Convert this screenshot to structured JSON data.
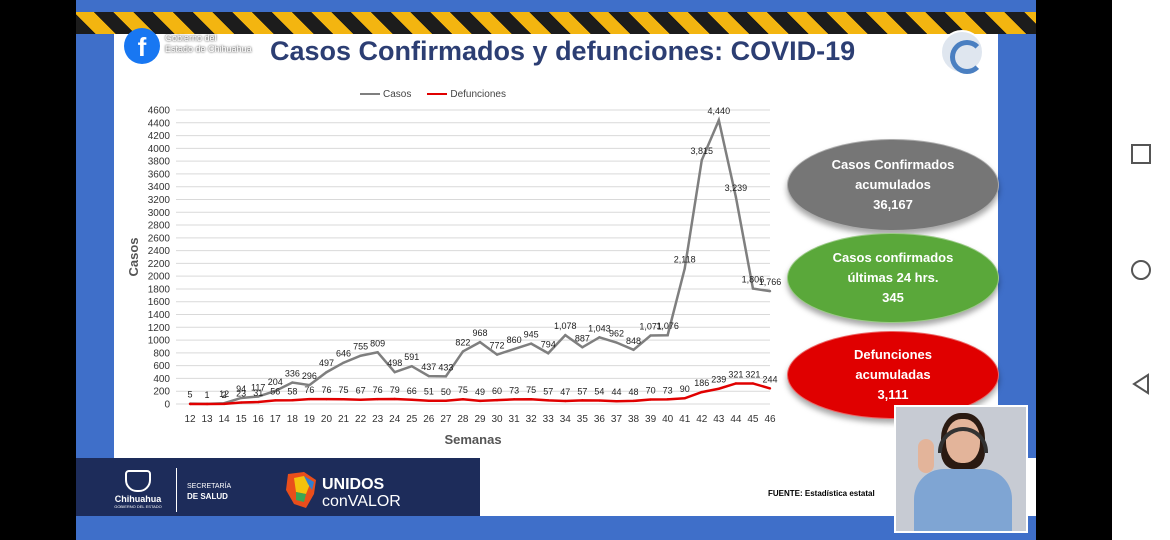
{
  "slide": {
    "title": "Casos Confirmados y defunciones: COVID-19",
    "gov_label_1": "Gobierno del",
    "gov_label_2": "Estado de Chihuahua",
    "source": "FUENTE: Estadística estatal"
  },
  "stats": {
    "confirmed_label_1": "Casos Confirmados",
    "confirmed_label_2": "acumulados",
    "confirmed_value": "36,167",
    "recent_label_1": "Casos confirmados",
    "recent_label_2": "últimas 24 hrs.",
    "recent_value": "345",
    "deaths_label_1": "Defunciones",
    "deaths_label_2": "acumuladas",
    "deaths_value": "3,111"
  },
  "footer": {
    "chihuahua": "Chihuahua",
    "chihuahua_sub": "GOBIERNO DEL ESTADO",
    "secretaria": "SECRETARÍA",
    "salud": "DE SALUD",
    "unidos_1": "UNIDOS",
    "unidos_2": "conVALOR"
  },
  "colors": {
    "casos": "#7f7f7f",
    "defunciones": "#e00000",
    "stripe_yellow": "#f3b510",
    "slide_blue": "#3f6fc9"
  },
  "icons": {
    "nav_recent": "square-icon",
    "nav_home": "circle-icon",
    "nav_back": "triangle-back-icon"
  },
  "chart_data": {
    "type": "line",
    "xlabel": "Semanas",
    "ylabel": "Casos",
    "ylim": [
      0,
      4600
    ],
    "ytick_step": 200,
    "grid": true,
    "legend": "top-center",
    "categories": [
      "12",
      "13",
      "14",
      "15",
      "16",
      "17",
      "18",
      "19",
      "20",
      "21",
      "22",
      "23",
      "24",
      "25",
      "26",
      "27",
      "28",
      "29",
      "30",
      "31",
      "32",
      "33",
      "34",
      "35",
      "36",
      "37",
      "38",
      "39",
      "40",
      "41",
      "42",
      "43",
      "44",
      "45",
      "46"
    ],
    "series": [
      {
        "name": "Casos",
        "color": "#7f7f7f",
        "values": [
          5,
          1,
          12,
          94,
          117,
          204,
          336,
          296,
          497,
          646,
          755,
          809,
          498,
          591,
          437,
          433,
          822,
          968,
          772,
          860,
          945,
          794,
          1078,
          887,
          1043,
          962,
          848,
          1071,
          1076,
          2118,
          3815,
          4440,
          3239,
          1806,
          1766
        ],
        "labels": [
          "5",
          "1",
          "12",
          "94",
          "117",
          "204",
          "336",
          "296",
          "497",
          "646",
          "755",
          "809",
          "498",
          "591",
          "437",
          "433",
          "822",
          "968",
          "772",
          "860",
          "945",
          "794",
          "1,078",
          "887",
          "1,043",
          "962",
          "848",
          "1,071",
          "1,076",
          "2,118",
          "3,815",
          "4,440",
          "3,239",
          "1,806",
          "1,766"
        ]
      },
      {
        "name": "Defunciones",
        "color": "#e00000",
        "values": [
          0,
          0,
          2,
          23,
          31,
          56,
          58,
          76,
          76,
          75,
          67,
          76,
          79,
          66,
          51,
          50,
          75,
          49,
          60,
          73,
          75,
          57,
          47,
          57,
          54,
          44,
          48,
          70,
          73,
          90,
          186,
          239,
          321,
          321,
          244
        ],
        "labels": [
          "",
          "",
          "2",
          "23",
          "31",
          "56",
          "58",
          "76",
          "76",
          "75",
          "67",
          "76",
          "79",
          "66",
          "51",
          "50",
          "75",
          "49",
          "60",
          "73",
          "75",
          "57",
          "47",
          "57",
          "54",
          "44",
          "48",
          "70",
          "73",
          "90",
          "186",
          "239",
          "321",
          "321",
          "244"
        ]
      }
    ]
  }
}
